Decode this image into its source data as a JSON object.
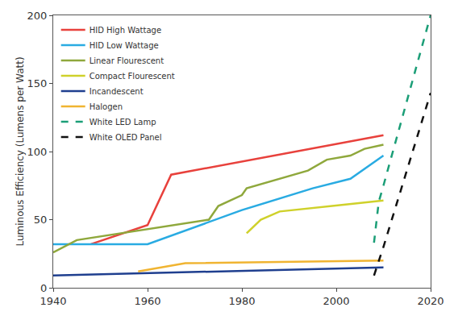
{
  "chart_data": {
    "type": "line",
    "y_label": "Luminous Efficiency (Lumens per Watt)",
    "xlim": [
      1940,
      2020
    ],
    "xticks": [
      1940,
      1960,
      1980,
      2000,
      2020
    ],
    "ylim": [
      0,
      200
    ],
    "yticks": [
      0,
      50,
      100,
      150,
      200
    ],
    "grid": false,
    "legend": "upper left",
    "series": [
      {
        "name": "HID High Wattage",
        "color": "#e8413c",
        "line_style": "solid",
        "x": [
          1948,
          1960,
          1965,
          2010
        ],
        "values": [
          32,
          46,
          83,
          112
        ]
      },
      {
        "name": "HID Low Wattage",
        "color": "#29abe2",
        "line_style": "solid",
        "x": [
          1940,
          1960,
          1980,
          1995,
          2003,
          2010
        ],
        "values": [
          32,
          32,
          57,
          73,
          80,
          97
        ]
      },
      {
        "name": "Linear Flourescent",
        "color": "#8fa83c",
        "line_style": "solid",
        "x": [
          1940,
          1945,
          1973,
          1975,
          1980,
          1981,
          1994,
          1998,
          2003,
          2006,
          2010
        ],
        "values": [
          26,
          35,
          50,
          60,
          68,
          73,
          86,
          94,
          97,
          102,
          105
        ]
      },
      {
        "name": "Compact Flourescent",
        "color": "#cfd12b",
        "line_style": "solid",
        "x": [
          1981,
          1984,
          1988,
          2010
        ],
        "values": [
          40,
          50,
          56,
          64
        ]
      },
      {
        "name": "Incandescent",
        "color": "#1f3f8f",
        "line_style": "solid",
        "x": [
          1940,
          2010
        ],
        "values": [
          9,
          15
        ]
      },
      {
        "name": "Halogen",
        "color": "#f0b431",
        "line_style": "solid",
        "x": [
          1958,
          1968,
          2010
        ],
        "values": [
          12,
          18,
          20
        ]
      },
      {
        "name": "White LED Lamp",
        "color": "#1b9e77",
        "line_style": "dash",
        "x": [
          2008,
          2009,
          2010,
          2020
        ],
        "values": [
          33,
          63,
          75,
          200
        ]
      },
      {
        "name": "White OLED Panel",
        "color": "#111111",
        "line_style": "dash",
        "x": [
          2008,
          2009,
          2010,
          2020
        ],
        "values": [
          9,
          20,
          30,
          143
        ]
      }
    ]
  }
}
